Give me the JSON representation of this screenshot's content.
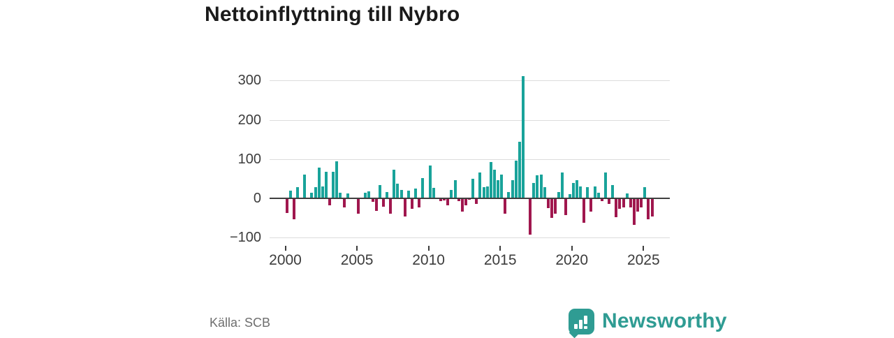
{
  "title": "Nettoinflyttning till Nybro",
  "source": "Källa: SCB",
  "brand": {
    "name": "Newsworthy",
    "color": "#2F9C93",
    "icon": "newsworthy-speech-bubble-bar-chart-icon"
  },
  "colors": {
    "positive_bar": "#19A39A",
    "negative_bar": "#A0174E",
    "gridline": "#DCDCDC",
    "zero_line": "#3F3F3F",
    "axis_text": "#3C3C3C",
    "title_text": "#1A1A1A",
    "source_text": "#6E6E6E",
    "background": "#FFFFFF"
  },
  "chart_data": {
    "type": "bar",
    "title": "Nettoinflyttning till Nybro",
    "x_unit": "quarter",
    "x_range": [
      "2000 Q1",
      "2025 Q3"
    ],
    "xlabel": "",
    "ylabel": "",
    "ylim": [
      -110,
      330
    ],
    "grid": true,
    "legend": false,
    "y_ticks": [
      300,
      200,
      100,
      0,
      -100
    ],
    "y_tick_labels": [
      "300",
      "200",
      "100",
      "0",
      "−100"
    ],
    "x_ticks": [
      2000,
      2005,
      2010,
      2015,
      2020,
      2025
    ],
    "x_tick_labels": [
      "2000",
      "2005",
      "2010",
      "2015",
      "2020",
      "2025"
    ],
    "values_by_year": {
      "2000": [
        -37,
        19,
        -54,
        28
      ],
      "2001": [
        0,
        60,
        0,
        14
      ],
      "2002": [
        29,
        79,
        30,
        67
      ],
      "2003": [
        -17,
        68,
        95,
        15
      ],
      "2004": [
        -24,
        13,
        0,
        0
      ],
      "2005": [
        -40,
        0,
        15,
        17
      ],
      "2006": [
        -9,
        -32,
        34,
        -21
      ],
      "2007": [
        16,
        -39,
        73,
        37
      ],
      "2008": [
        22,
        -46,
        20,
        -27
      ],
      "2009": [
        25,
        -23,
        52,
        0
      ],
      "2010": [
        83,
        26,
        0,
        -8
      ],
      "2011": [
        -6,
        -17,
        22,
        46
      ],
      "2012": [
        -8,
        -34,
        -17,
        -4
      ],
      "2013": [
        49,
        -14,
        66,
        28
      ],
      "2014": [
        31,
        93,
        73,
        46
      ],
      "2015": [
        60,
        -40,
        16,
        47
      ],
      "2016": [
        96,
        145,
        311,
        0
      ],
      "2017": [
        -92,
        40,
        59,
        61
      ],
      "2018": [
        29,
        -25,
        -50,
        -40
      ],
      "2019": [
        16,
        66,
        -43,
        10
      ],
      "2020": [
        39,
        46,
        30,
        -62
      ],
      "2021": [
        28,
        -34,
        30,
        15
      ],
      "2022": [
        -8,
        65,
        -14,
        34
      ],
      "2023": [
        -48,
        -27,
        -23,
        13
      ],
      "2024": [
        -24,
        -67,
        -34,
        -23
      ],
      "2025": [
        28,
        -54,
        -46
      ]
    }
  }
}
